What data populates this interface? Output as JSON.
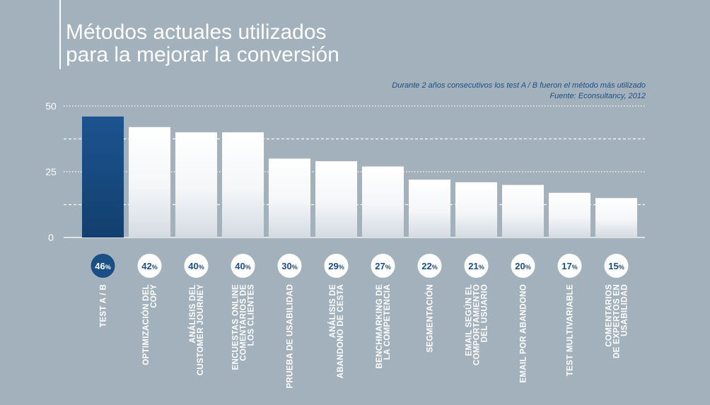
{
  "title": [
    "Métodos actuales utilizados",
    "para la mejorar la conversión"
  ],
  "note": [
    "Durante 2 años consecutivos los test A / B fueron el método más utilizado",
    "Fuente: Econsultancy, 2012"
  ],
  "colors": {
    "background": "#a3b1bc",
    "highlight": "#1a4f86",
    "bar": "#ffffff",
    "gridline": "#ffffff"
  },
  "chart_data": {
    "type": "bar",
    "ylim": [
      0,
      50
    ],
    "yticks": [
      0,
      25,
      50
    ],
    "grid": true,
    "highlight_index": 0,
    "categories": [
      [
        "TEST A / B"
      ],
      [
        "OPTIMIZACIÓN DEL",
        "COPY"
      ],
      [
        "ANÁLISIS DEL",
        "CUSTOMER JOURNEY"
      ],
      [
        "ENCUESTAS ONLINE",
        "COMENTARIOS DE",
        "LOS CLIENTES"
      ],
      [
        "PRUEBA DE USABILIDAD"
      ],
      [
        "ANÁLISIS DE",
        "ABANDONO DE CESTA"
      ],
      [
        "BENCHMARKING DE",
        "LA COMPETENCIA"
      ],
      [
        "SEGMENTACIÓN"
      ],
      [
        "EMAIL SEGÚN EL",
        "COMPORTAMIENTO",
        "DEL USUARIO"
      ],
      [
        "EMAIL POR ABANDONO"
      ],
      [
        "TEST MULTIVARIABLE"
      ],
      [
        "COMENTARIOS",
        "DE EXPERTOS EN",
        "USABILIDAD"
      ]
    ],
    "values": [
      46,
      42,
      40,
      40,
      30,
      29,
      27,
      22,
      21,
      20,
      17,
      15
    ],
    "value_suffix": "%"
  }
}
